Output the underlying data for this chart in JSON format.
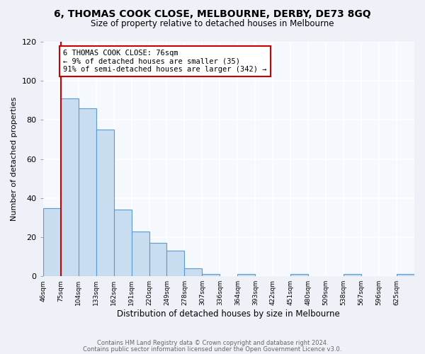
{
  "title": "6, THOMAS COOK CLOSE, MELBOURNE, DERBY, DE73 8GQ",
  "subtitle": "Size of property relative to detached houses in Melbourne",
  "xlabel": "Distribution of detached houses by size in Melbourne",
  "ylabel": "Number of detached properties",
  "footer1": "Contains HM Land Registry data © Crown copyright and database right 2024.",
  "footer2": "Contains public sector information licensed under the Open Government Licence v3.0.",
  "categories": [
    "46sqm",
    "75sqm",
    "104sqm",
    "133sqm",
    "162sqm",
    "191sqm",
    "220sqm",
    "249sqm",
    "278sqm",
    "307sqm",
    "336sqm",
    "364sqm",
    "393sqm",
    "422sqm",
    "451sqm",
    "480sqm",
    "509sqm",
    "538sqm",
    "567sqm",
    "596sqm",
    "625sqm"
  ],
  "bar_heights": [
    35,
    91,
    86,
    75,
    34,
    23,
    17,
    13,
    4,
    1,
    0,
    1,
    0,
    0,
    1,
    0,
    0,
    1,
    0,
    0,
    1
  ],
  "bar_color": "#c8ddef",
  "bar_edge_color": "#5b9bd5",
  "vline_x_index": 1,
  "vline_color": "#cc0000",
  "ylim": [
    0,
    120
  ],
  "yticks": [
    0,
    20,
    40,
    60,
    80,
    100,
    120
  ],
  "annotation_title": "6 THOMAS COOK CLOSE: 76sqm",
  "annotation_line1": "← 9% of detached houses are smaller (35)",
  "annotation_line2": "91% of semi-detached houses are larger (342) →",
  "annotation_box_color": "#cc0000",
  "bg_color": "#eef2f8",
  "plot_bg_color": "#f5f8fc",
  "title_fontsize": 10,
  "subtitle_fontsize": 8.5,
  "ylabel_fontsize": 8,
  "xlabel_fontsize": 8.5
}
